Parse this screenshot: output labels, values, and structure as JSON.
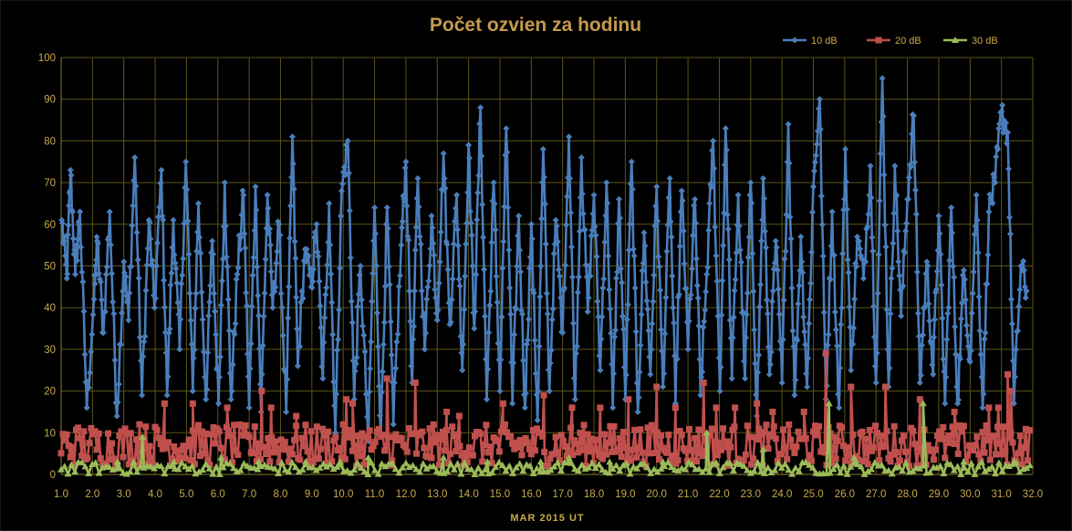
{
  "chart_data": {
    "type": "line",
    "title": "Počet ozvien za hodinu",
    "xlabel": "MAR 2015 UT",
    "ylabel": "",
    "xlim": [
      1.0,
      32.0
    ],
    "ylim": [
      0,
      100
    ],
    "x_ticks": [
      "1.0",
      "2.0",
      "3.0",
      "4.0",
      "5.0",
      "6.0",
      "7.0",
      "8.0",
      "9.0",
      "10.0",
      "11.0",
      "12.0",
      "13.0",
      "14.0",
      "15.0",
      "16.0",
      "17.0",
      "18.0",
      "19.0",
      "20.0",
      "21.0",
      "22.0",
      "23.0",
      "24.0",
      "25.0",
      "26.0",
      "27.0",
      "28.0",
      "29.0",
      "30.0",
      "31.0",
      "32.0"
    ],
    "y_ticks": [
      "0",
      "10",
      "20",
      "30",
      "40",
      "50",
      "60",
      "70",
      "80",
      "90",
      "100"
    ],
    "grid": true,
    "legend_position": "top-right",
    "colors": {
      "background": "#000000",
      "grid": "#5c5418",
      "axis_text": "#c8aa4a",
      "title": "#c59a4e"
    },
    "series": [
      {
        "name": "10 dB",
        "color": "#4a7ebb",
        "marker": "diamond",
        "peaks": [
          [
            1.02,
            61
          ],
          [
            1.18,
            47
          ],
          [
            1.3,
            73
          ],
          [
            1.45,
            48
          ],
          [
            1.6,
            63
          ],
          [
            1.82,
            16
          ],
          [
            2.05,
            42
          ],
          [
            2.15,
            56
          ],
          [
            2.35,
            34
          ],
          [
            2.55,
            63
          ],
          [
            2.78,
            14
          ],
          [
            3.0,
            51
          ],
          [
            3.15,
            37
          ],
          [
            3.35,
            76
          ],
          [
            3.58,
            19
          ],
          [
            3.8,
            61
          ],
          [
            3.98,
            40
          ],
          [
            4.2,
            73
          ],
          [
            4.38,
            19
          ],
          [
            4.58,
            61
          ],
          [
            4.78,
            30
          ],
          [
            4.98,
            75
          ],
          [
            5.2,
            20
          ],
          [
            5.38,
            65
          ],
          [
            5.62,
            18
          ],
          [
            5.82,
            56
          ],
          [
            6.02,
            17
          ],
          [
            6.22,
            70
          ],
          [
            6.42,
            18
          ],
          [
            6.62,
            48
          ],
          [
            6.82,
            67
          ],
          [
            7.0,
            16
          ],
          [
            7.2,
            69
          ],
          [
            7.38,
            15
          ],
          [
            7.58,
            67
          ],
          [
            7.75,
            40
          ],
          [
            7.95,
            60
          ],
          [
            8.18,
            15
          ],
          [
            8.38,
            81
          ],
          [
            8.55,
            26
          ],
          [
            8.78,
            54
          ],
          [
            8.98,
            45
          ],
          [
            9.15,
            60
          ],
          [
            9.35,
            23
          ],
          [
            9.55,
            65
          ],
          [
            9.75,
            10
          ],
          [
            9.95,
            68
          ],
          [
            10.15,
            80
          ],
          [
            10.35,
            18
          ],
          [
            10.55,
            50
          ],
          [
            10.8,
            8
          ],
          [
            11.0,
            64
          ],
          [
            11.2,
            9
          ],
          [
            11.4,
            64
          ],
          [
            11.6,
            12
          ],
          [
            11.85,
            55
          ],
          [
            12.0,
            75
          ],
          [
            12.2,
            22
          ],
          [
            12.38,
            71
          ],
          [
            12.6,
            30
          ],
          [
            12.82,
            62
          ],
          [
            13.0,
            37
          ],
          [
            13.2,
            77
          ],
          [
            13.4,
            36
          ],
          [
            13.62,
            67
          ],
          [
            13.8,
            25
          ],
          [
            14.0,
            79
          ],
          [
            14.18,
            35
          ],
          [
            14.38,
            88
          ],
          [
            14.58,
            18
          ],
          [
            14.8,
            70
          ],
          [
            15.0,
            20
          ],
          [
            15.2,
            83
          ],
          [
            15.4,
            17
          ],
          [
            15.6,
            62
          ],
          [
            15.8,
            16
          ],
          [
            16.0,
            60
          ],
          [
            16.2,
            13
          ],
          [
            16.38,
            78
          ],
          [
            16.58,
            20
          ],
          [
            16.78,
            61
          ],
          [
            17.0,
            34
          ],
          [
            17.2,
            81
          ],
          [
            17.4,
            18
          ],
          [
            17.6,
            76
          ],
          [
            17.8,
            39
          ],
          [
            18.0,
            67
          ],
          [
            18.2,
            25
          ],
          [
            18.4,
            70
          ],
          [
            18.6,
            16
          ],
          [
            18.8,
            66
          ],
          [
            19.0,
            18
          ],
          [
            19.2,
            75
          ],
          [
            19.4,
            15
          ],
          [
            19.6,
            58
          ],
          [
            19.8,
            24
          ],
          [
            20.0,
            69
          ],
          [
            20.2,
            21
          ],
          [
            20.42,
            71
          ],
          [
            20.6,
            17
          ],
          [
            20.8,
            68
          ],
          [
            21.0,
            30
          ],
          [
            21.22,
            66
          ],
          [
            21.4,
            19
          ],
          [
            21.6,
            48
          ],
          [
            21.8,
            80
          ],
          [
            22.02,
            20
          ],
          [
            22.2,
            83
          ],
          [
            22.4,
            23
          ],
          [
            22.6,
            67
          ],
          [
            22.82,
            23
          ],
          [
            23.0,
            70
          ],
          [
            23.2,
            14
          ],
          [
            23.4,
            71
          ],
          [
            23.6,
            24
          ],
          [
            23.8,
            56
          ],
          [
            24.0,
            22
          ],
          [
            24.2,
            84
          ],
          [
            24.4,
            19
          ],
          [
            24.6,
            57
          ],
          [
            24.8,
            21
          ],
          [
            25.0,
            69
          ],
          [
            25.2,
            90
          ],
          [
            25.4,
            18
          ],
          [
            25.6,
            63
          ],
          [
            25.82,
            16
          ],
          [
            26.02,
            78
          ],
          [
            26.2,
            25
          ],
          [
            26.4,
            57
          ],
          [
            26.6,
            47
          ],
          [
            26.82,
            74
          ],
          [
            27.0,
            22
          ],
          [
            27.2,
            95
          ],
          [
            27.4,
            21
          ],
          [
            27.6,
            74
          ],
          [
            27.8,
            38
          ],
          [
            28.0,
            66
          ],
          [
            28.2,
            86
          ],
          [
            28.4,
            22
          ],
          [
            28.62,
            51
          ],
          [
            28.82,
            24
          ],
          [
            29.0,
            62
          ],
          [
            29.2,
            17
          ],
          [
            29.4,
            64
          ],
          [
            29.6,
            17
          ],
          [
            29.8,
            49
          ],
          [
            30.0,
            27
          ],
          [
            30.2,
            67
          ],
          [
            30.4,
            16
          ],
          [
            30.6,
            63
          ],
          [
            30.8,
            70
          ],
          [
            31.0,
            87
          ],
          [
            31.2,
            82
          ],
          [
            31.4,
            17
          ],
          [
            31.62,
            50
          ],
          [
            31.8,
            44
          ]
        ]
      },
      {
        "name": "20 dB",
        "color": "#c0504d",
        "marker": "square",
        "typical_range": [
          2,
          12
        ],
        "spikes": [
          [
            3.5,
            12
          ],
          [
            4.3,
            17
          ],
          [
            5.2,
            17
          ],
          [
            6.3,
            16
          ],
          [
            7.4,
            20
          ],
          [
            7.7,
            16
          ],
          [
            8.5,
            14
          ],
          [
            10.1,
            18
          ],
          [
            10.3,
            17
          ],
          [
            11.4,
            23
          ],
          [
            12.3,
            22
          ],
          [
            13.3,
            15
          ],
          [
            13.7,
            14
          ],
          [
            15.1,
            17
          ],
          [
            16.4,
            19
          ],
          [
            17.3,
            16
          ],
          [
            18.2,
            16
          ],
          [
            19.1,
            18
          ],
          [
            20.0,
            21
          ],
          [
            20.6,
            16
          ],
          [
            21.5,
            22
          ],
          [
            21.9,
            16
          ],
          [
            22.5,
            16
          ],
          [
            23.2,
            17
          ],
          [
            23.7,
            15
          ],
          [
            24.7,
            15
          ],
          [
            25.4,
            29
          ],
          [
            26.2,
            21
          ],
          [
            27.3,
            21
          ],
          [
            28.4,
            18
          ],
          [
            29.5,
            15
          ],
          [
            30.6,
            16
          ],
          [
            30.9,
            16
          ],
          [
            31.2,
            24
          ],
          [
            31.3,
            20
          ]
        ]
      },
      {
        "name": "30 dB",
        "color": "#9bbb59",
        "marker": "triangle",
        "typical_range": [
          0,
          3
        ],
        "spikes": [
          [
            2.8,
            3
          ],
          [
            3.6,
            9
          ],
          [
            4.6,
            3
          ],
          [
            6.1,
            4
          ],
          [
            7.3,
            3
          ],
          [
            8.8,
            3
          ],
          [
            9.9,
            3
          ],
          [
            10.8,
            4
          ],
          [
            13.2,
            4
          ],
          [
            14.6,
            3
          ],
          [
            16.3,
            3
          ],
          [
            17.2,
            4
          ],
          [
            18.5,
            3
          ],
          [
            20.2,
            3
          ],
          [
            21.6,
            10
          ],
          [
            23.4,
            6
          ],
          [
            25.5,
            17
          ],
          [
            26.3,
            4
          ],
          [
            28.5,
            17
          ],
          [
            29.8,
            3
          ],
          [
            31.4,
            3
          ]
        ]
      }
    ]
  }
}
